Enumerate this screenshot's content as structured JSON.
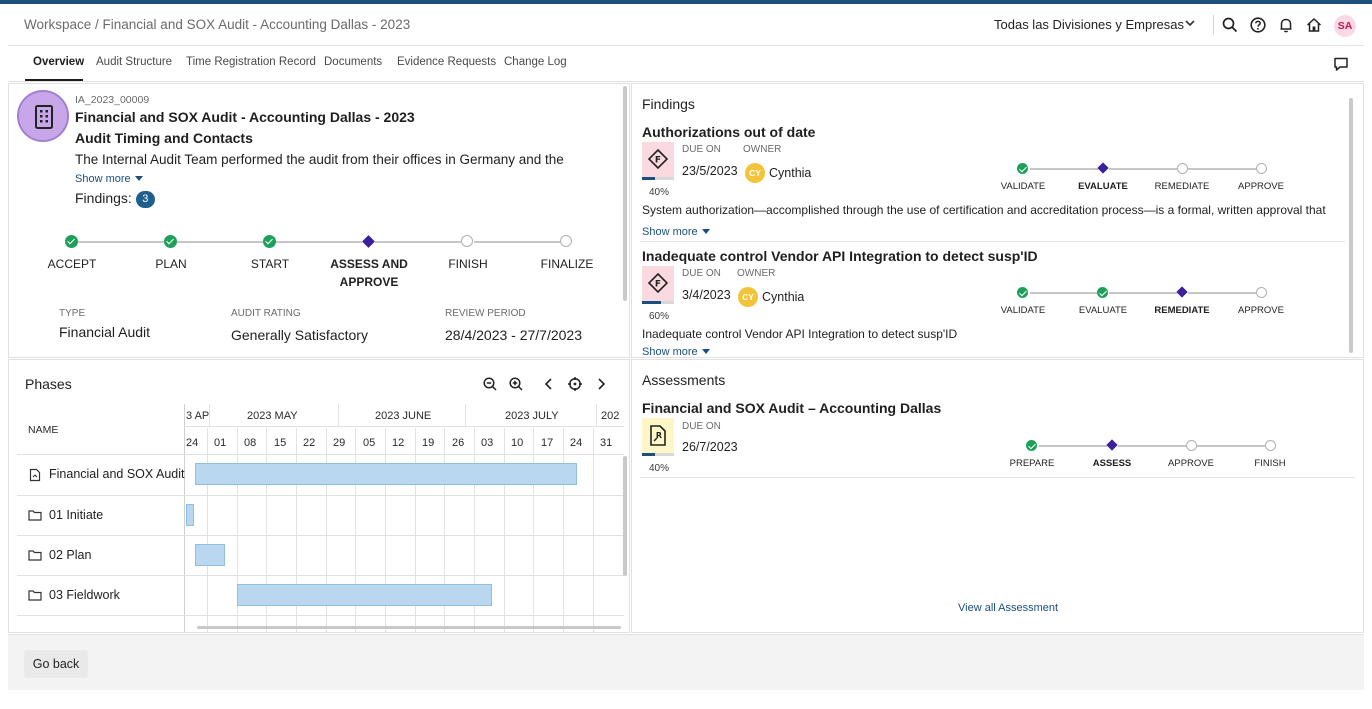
{
  "header": {
    "breadcrumb": "Workspace / Financial and SOX Audit - Accounting Dallas - 2023",
    "division_select": "Todas las Divisiones y Empresas",
    "avatar_initials": "SA"
  },
  "tabs": [
    "Overview",
    "Audit Structure",
    "Time Registration Record",
    "Documents",
    "Evidence Requests",
    "Change Log"
  ],
  "overview": {
    "code": "IA_2023_00009",
    "title": "Financial and SOX Audit - Accounting Dallas - 2023",
    "subtitle": "Audit Timing and Contacts",
    "description": "The Internal Audit Team performed the audit from their offices in Germany and the",
    "show_more": "Show more",
    "findings_label": "Findings:",
    "findings_count": "3",
    "steps": [
      "ACCEPT",
      "PLAN",
      "START",
      "ASSESS AND APPROVE",
      "FINISH",
      "FINALIZE"
    ],
    "step_states": [
      "done",
      "done",
      "done",
      "current",
      "pending",
      "pending"
    ],
    "type_label": "TYPE",
    "type_value": "Financial Audit",
    "rating_label": "AUDIT RATING",
    "rating_value": "Generally Satisfactory",
    "period_label": "REVIEW PERIOD",
    "period_value": "28/4/2023 - 27/7/2023"
  },
  "findings": {
    "title": "Findings",
    "due_label": "DUE ON",
    "owner_label": "OWNER",
    "show_more": "Show more",
    "items": [
      {
        "title": "Authorizations out of date",
        "due": "23/5/2023",
        "owner_initials": "CY",
        "owner": "Cynthia",
        "progress_label": "40%",
        "progress": 0.4,
        "steps": [
          "VALIDATE",
          "EVALUATE",
          "REMEDIATE",
          "APPROVE"
        ],
        "step_states": [
          "done",
          "current",
          "pending",
          "pending"
        ],
        "description": "System authorization—accomplished through the use of certification and accreditation process—is a formal, written approval that"
      },
      {
        "title": "Inadequate control Vendor API Integration to detect susp'ID",
        "due": "3/4/2023",
        "owner_initials": "CY",
        "owner": "Cynthia",
        "progress_label": "60%",
        "progress": 0.6,
        "steps": [
          "VALIDATE",
          "EVALUATE",
          "REMEDIATE",
          "APPROVE"
        ],
        "step_states": [
          "done",
          "done",
          "current",
          "pending"
        ],
        "description": "Inadequate control Vendor API Integration to detect susp'ID"
      }
    ]
  },
  "phases": {
    "title": "Phases",
    "name_header": "NAME",
    "months": [
      "3 AP",
      "2023 MAY",
      "2023 JUNE",
      "2023 JULY",
      "202"
    ],
    "days": [
      "24",
      "01",
      "08",
      "15",
      "22",
      "29",
      "05",
      "12",
      "19",
      "26",
      "03",
      "10",
      "17",
      "24",
      "31"
    ],
    "rows": [
      {
        "name": "Financial and SOX Audit",
        "icon": "audit-doc-icon"
      },
      {
        "name": "01 Initiate",
        "icon": "folder-icon"
      },
      {
        "name": "02 Plan",
        "icon": "folder-icon"
      },
      {
        "name": "03 Fieldwork",
        "icon": "folder-icon"
      }
    ]
  },
  "assessments": {
    "title": "Assessments",
    "item_title": "Financial and SOX Audit – Accounting Dallas",
    "due_label": "DUE ON",
    "due": "26/7/2023",
    "progress_label": "40%",
    "progress": 0.4,
    "steps": [
      "PREPARE",
      "ASSESS",
      "APPROVE",
      "FINISH"
    ],
    "step_states": [
      "done",
      "current",
      "pending",
      "pending"
    ],
    "view_all": "View all Assessment"
  },
  "footer": {
    "go_back": "Go back"
  },
  "colors": {
    "brand": "#1c4f7c",
    "done": "#1fa05a",
    "current": "#3b1f9c",
    "bar": "#b9d8ef"
  }
}
